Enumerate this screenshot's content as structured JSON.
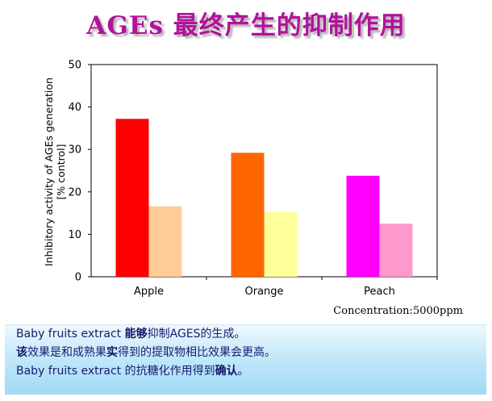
{
  "title": {
    "prefix": "AGEs",
    "rest": " 最终产生的抑制作用"
  },
  "chart_data": {
    "type": "bar",
    "categories": [
      "Apple",
      "Orange",
      "Peach"
    ],
    "series": [
      {
        "values": [
          37.2,
          29.2,
          23.8
        ],
        "colors": [
          "#ff0000",
          "#ff6600",
          "#ff00ff"
        ]
      },
      {
        "values": [
          16.6,
          15.3,
          12.5
        ],
        "colors": [
          "#ffcc99",
          "#ffff99",
          "#ff99cc"
        ]
      }
    ],
    "ylabel_line1": "Inhibitory activity of AGEs generation",
    "ylabel_line2": "[% control]",
    "ylim": [
      0,
      50
    ],
    "yticks": [
      0,
      10,
      20,
      30,
      40,
      50
    ],
    "grid": false
  },
  "note": "Concentration:5000ppm",
  "description": {
    "line1": {
      "a": "Baby fruits extract ",
      "b": "能够",
      "c": "抑制AGES的生成。"
    },
    "line2": {
      "a": "该",
      "b": "效果是和成熟果",
      "c": "实",
      "d": "得到的提取物相比效果会更高。"
    },
    "line3": {
      "a": "Baby fruits extract 的抗糖化作用得到",
      "b": "确认",
      "c": "。"
    }
  }
}
